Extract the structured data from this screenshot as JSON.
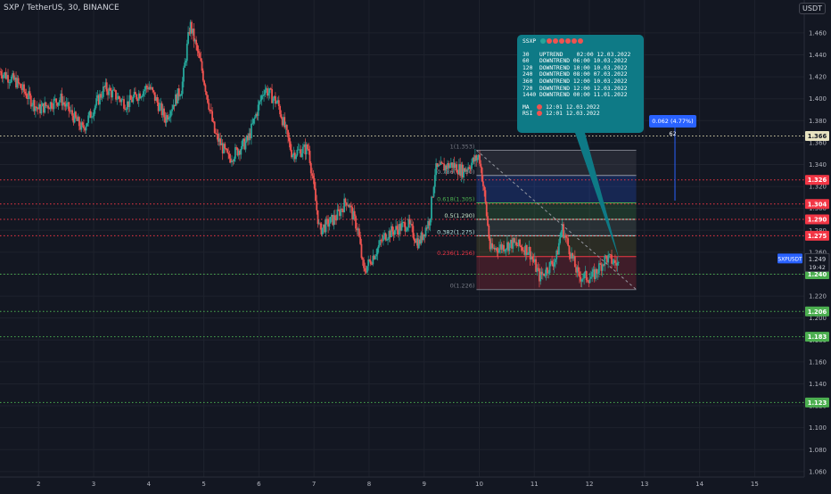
{
  "header": {
    "title": "SXP / TetherUS, 30, BINANCE",
    "currency": "USDT"
  },
  "info_panel": {
    "symbol": "SSXP",
    "status_dots": [
      "#26a69a",
      "#ef5350",
      "#ef5350",
      "#ef5350",
      "#ef5350",
      "#ef5350",
      "#ef5350"
    ],
    "trends": [
      {
        "tf": "30",
        "trend": "UPTREND",
        "time": "02:00 12.03.2022"
      },
      {
        "tf": "60",
        "trend": "DOWNTREND",
        "time": "06:00 10.03.2022"
      },
      {
        "tf": "120",
        "trend": "DOWNTREND",
        "time": "10:00 10.03.2022"
      },
      {
        "tf": "240",
        "trend": "DOWNTREND",
        "time": "08:00 07.03.2022"
      },
      {
        "tf": "360",
        "trend": "DOWNTREND",
        "time": "12:00 10.03.2022"
      },
      {
        "tf": "720",
        "trend": "DOWNTREND",
        "time": "12:00 12.03.2022"
      },
      {
        "tf": "1440",
        "trend": "DOWNTREND",
        "time": "00:00 11.01.2022"
      }
    ],
    "indicators": [
      {
        "name": "MA",
        "color": "#ef5350",
        "time": "12:01 12.03.2022"
      },
      {
        "name": "RSI",
        "color": "#ef5350",
        "time": "12:01 12.03.2022"
      }
    ]
  },
  "measure_label": "0.062 (4.77%) 62",
  "chart_data": {
    "type": "candlestick",
    "title": "SXP / TetherUS, 30, BINANCE",
    "ylim": [
      1.055,
      1.49
    ],
    "xlim": [
      1.3,
      15.9
    ],
    "y_ticks": [
      "1.460",
      "1.440",
      "1.420",
      "1.400",
      "1.380",
      "1.360",
      "1.340",
      "1.320",
      "1.300",
      "1.280",
      "1.260",
      "1.240",
      "1.220",
      "1.200",
      "1.180",
      "1.160",
      "1.140",
      "1.120",
      "1.100",
      "1.080",
      "1.060"
    ],
    "x_ticks": [
      "2",
      "3",
      "4",
      "5",
      "6",
      "7",
      "8",
      "9",
      "10",
      "11",
      "12",
      "13",
      "14",
      "15"
    ],
    "up_color": "#26a69a",
    "down_color": "#ef5350",
    "price_anchors": [
      [
        1.3,
        1.425
      ],
      [
        1.6,
        1.415
      ],
      [
        2.0,
        1.39
      ],
      [
        2.4,
        1.4
      ],
      [
        2.8,
        1.372
      ],
      [
        3.2,
        1.41
      ],
      [
        3.6,
        1.395
      ],
      [
        4.0,
        1.412
      ],
      [
        4.3,
        1.382
      ],
      [
        4.6,
        1.41
      ],
      [
        4.75,
        1.468
      ],
      [
        4.95,
        1.43
      ],
      [
        5.2,
        1.368
      ],
      [
        5.45,
        1.345
      ],
      [
        5.8,
        1.362
      ],
      [
        6.1,
        1.41
      ],
      [
        6.35,
        1.395
      ],
      [
        6.6,
        1.35
      ],
      [
        6.9,
        1.355
      ],
      [
        7.1,
        1.28
      ],
      [
        7.4,
        1.292
      ],
      [
        7.6,
        1.308
      ],
      [
        7.8,
        1.28
      ],
      [
        7.9,
        1.242
      ],
      [
        8.3,
        1.276
      ],
      [
        8.7,
        1.286
      ],
      [
        8.9,
        1.268
      ],
      [
        9.1,
        1.29
      ],
      [
        9.2,
        1.335
      ],
      [
        9.5,
        1.34
      ],
      [
        9.7,
        1.334
      ],
      [
        10.0,
        1.348
      ],
      [
        10.1,
        1.31
      ],
      [
        10.2,
        1.262
      ],
      [
        10.6,
        1.268
      ],
      [
        10.9,
        1.262
      ],
      [
        11.1,
        1.237
      ],
      [
        11.4,
        1.255
      ],
      [
        11.5,
        1.283
      ],
      [
        11.8,
        1.238
      ],
      [
        12.05,
        1.237
      ],
      [
        12.3,
        1.255
      ],
      [
        12.55,
        1.248
      ]
    ],
    "horizontal_levels": [
      {
        "value": 1.366,
        "label": "1.366",
        "color": "#e8e3c1",
        "line": "#d4cfa6"
      },
      {
        "value": 1.326,
        "label": "1.326",
        "color": "#f23645",
        "line": "#f23645"
      },
      {
        "value": 1.304,
        "label": "1.304",
        "color": "#f23645",
        "line": "#f23645"
      },
      {
        "value": 1.29,
        "label": "1.290",
        "color": "#f23645",
        "line": "#f23645"
      },
      {
        "value": 1.275,
        "label": "1.275",
        "color": "#f23645",
        "line": "#f23645"
      },
      {
        "value": 1.24,
        "label": "1.240",
        "color": "#4caf50",
        "line": "#4caf50"
      },
      {
        "value": 1.206,
        "label": "1.206",
        "color": "#4caf50",
        "line": "#4caf50"
      },
      {
        "value": 1.183,
        "label": "1.183",
        "color": "#4caf50",
        "line": "#4caf50"
      },
      {
        "value": 1.123,
        "label": "1.123",
        "color": "#4caf50",
        "line": "#4caf50"
      }
    ],
    "current_price": {
      "symbol": "SXPUSDT",
      "value": 1.249,
      "label": "1.249",
      "countdown": "19:42"
    },
    "fibonacci": {
      "x_start": 9.95,
      "x_end": 12.85,
      "label_x": 9.95,
      "levels": [
        {
          "ratio": 1,
          "label": "1(1.353)",
          "value": 1.353,
          "color": "#787b86"
        },
        {
          "ratio": 0.786,
          "label": "0.786(1.330)",
          "value": 1.33,
          "color": "#9598a1"
        },
        {
          "ratio": 0.618,
          "label": "0.618(1.305)",
          "value": 1.305,
          "color": "#4caf50"
        },
        {
          "ratio": 0.5,
          "label": "0.5(1.290)",
          "value": 1.29,
          "color": "#c8e6c9"
        },
        {
          "ratio": 0.382,
          "label": "0.382(1.275)",
          "value": 1.275,
          "color": "#b2dfdb"
        },
        {
          "ratio": 0.236,
          "label": "0.236(1.256)",
          "value": 1.256,
          "color": "#f23645"
        },
        {
          "ratio": 0,
          "label": "0(1.226)",
          "value": 1.226,
          "color": "#787b86"
        }
      ],
      "zone_fills": [
        "rgba(120,123,134,0.18)",
        "rgba(41,98,255,0.22)",
        "rgba(76,175,80,0.20)",
        "rgba(200,230,201,0.12)",
        "rgba(255,235,59,0.10)",
        "rgba(242,54,69,0.20)"
      ]
    },
    "trend_line": {
      "x1": 9.95,
      "y1": 1.353,
      "x2": 12.85,
      "y2": 1.226
    }
  }
}
